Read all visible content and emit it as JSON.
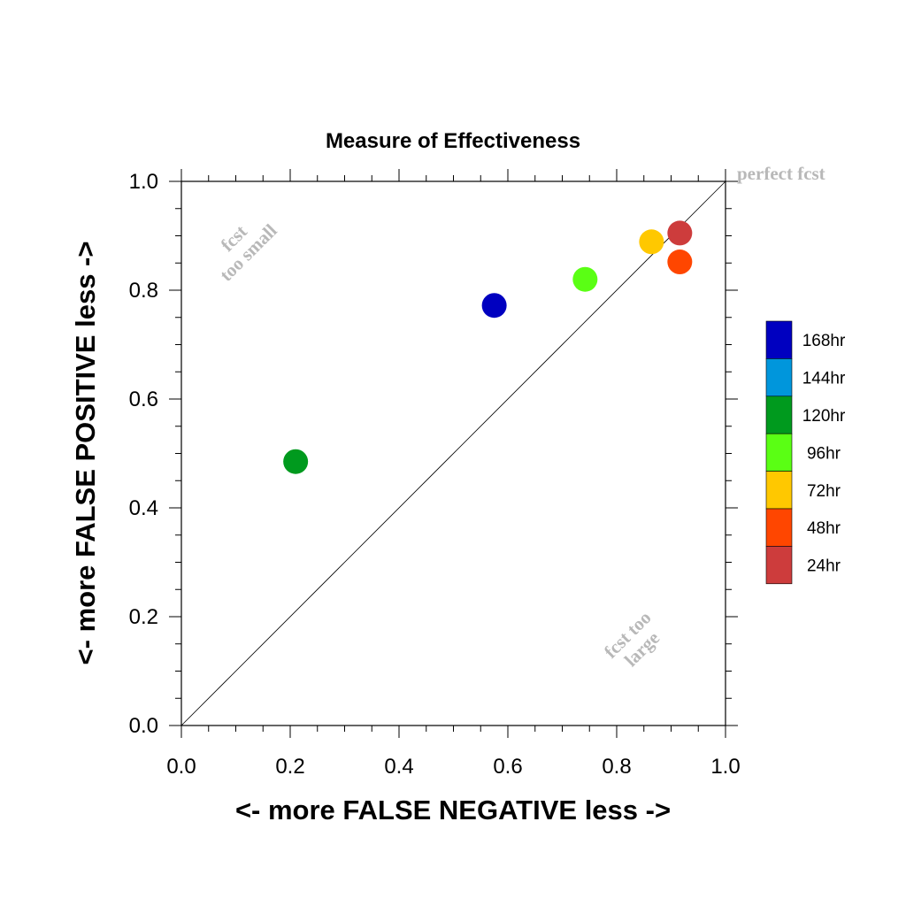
{
  "chart_data": {
    "type": "scatter",
    "title": "Measure of Effectiveness",
    "xlabel": "<- more   FALSE NEGATIVE   less ->",
    "ylabel": "<- more   FALSE POSITIVE   less ->",
    "xlim": [
      0,
      1
    ],
    "ylim": [
      0,
      1
    ],
    "xticks": [
      "0.0",
      "0.2",
      "0.4",
      "0.6",
      "0.8",
      "1.0"
    ],
    "yticks": [
      "0.0",
      "0.2",
      "0.4",
      "0.6",
      "0.8",
      "1.0"
    ],
    "grid": false,
    "diagonal_line": true,
    "annotations": {
      "perfect": "perfect fcst",
      "too_small_1": "fcst",
      "too_small_2": "too small",
      "too_large_1": "fcst too",
      "too_large_2": "large"
    },
    "legend": {
      "placement": "right",
      "entries": [
        {
          "label": "168hr",
          "color": "#0000c0"
        },
        {
          "label": "144hr",
          "color": "#0096dc"
        },
        {
          "label": "120hr",
          "color": "#009a1e"
        },
        {
          "label": "96hr",
          "color": "#5aff14"
        },
        {
          "label": "72hr",
          "color": "#ffc800"
        },
        {
          "label": "48hr",
          "color": "#ff4600"
        },
        {
          "label": "24hr",
          "color": "#cd3c3c"
        }
      ]
    },
    "points": [
      {
        "series": "168hr",
        "x": 0.575,
        "y": 0.772,
        "color": "#0000c0"
      },
      {
        "series": "120hr",
        "x": 0.21,
        "y": 0.485,
        "color": "#009a1e"
      },
      {
        "series": "96hr",
        "x": 0.742,
        "y": 0.82,
        "color": "#5aff14"
      },
      {
        "series": "72hr",
        "x": 0.864,
        "y": 0.889,
        "color": "#ffc800"
      },
      {
        "series": "48hr",
        "x": 0.916,
        "y": 0.852,
        "color": "#ff4600"
      },
      {
        "series": "24hr",
        "x": 0.916,
        "y": 0.905,
        "color": "#cd3c3c"
      }
    ]
  }
}
